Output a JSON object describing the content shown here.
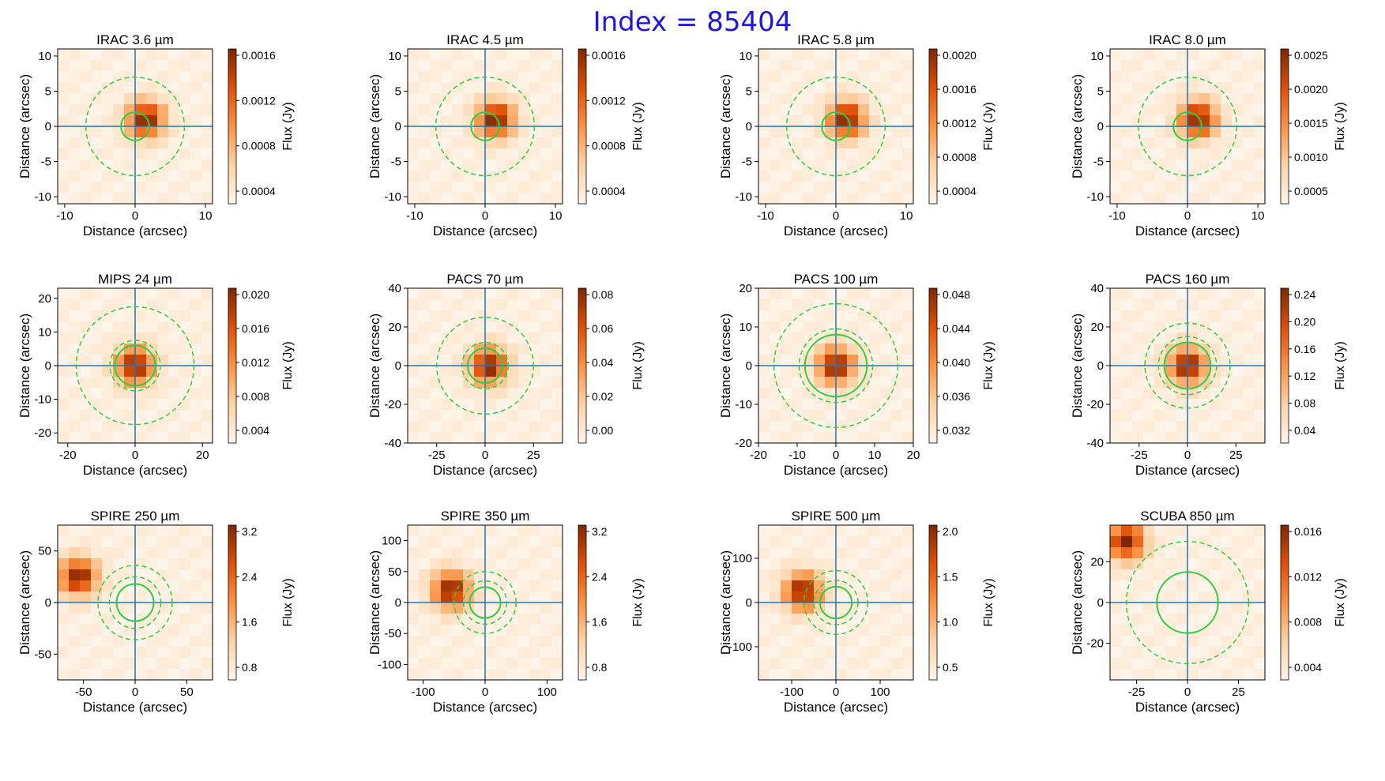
{
  "figure_title": "Index = 85404",
  "colors": {
    "title": "#1d18e0",
    "aperture": "#2ecc40",
    "crosshair": "#1f77b4",
    "cmap": [
      "#fff5eb",
      "#fdd3a7",
      "#fd9243",
      "#df4f05",
      "#7f2704"
    ]
  },
  "chart_data": [
    {
      "type": "heatmap",
      "title": "IRAC 3.6 µm",
      "xlabel": "Distance (arcsec)",
      "ylabel": "Distance (arcsec)",
      "cbar_label": "Flux (Jy)",
      "xlim": [
        -11,
        11
      ],
      "ylim": [
        -11,
        11
      ],
      "xticks": [
        -10,
        0,
        10
      ],
      "yticks": [
        10,
        5,
        0,
        -5,
        -10
      ],
      "cbar_ticks": [
        "0.0016",
        "0.0012",
        "0.0008",
        "0.0004"
      ],
      "aperture_radius": 2,
      "annulus_radii": [
        7
      ],
      "source": {
        "x": 1.5,
        "y": 1.0
      }
    },
    {
      "type": "heatmap",
      "title": "IRAC 4.5 µm",
      "xlabel": "Distance (arcsec)",
      "ylabel": "Distance (arcsec)",
      "cbar_label": "Flux (Jy)",
      "xlim": [
        -11,
        11
      ],
      "ylim": [
        -11,
        11
      ],
      "xticks": [
        -10,
        0,
        10
      ],
      "yticks": [
        10,
        5,
        0,
        -5,
        -10
      ],
      "cbar_ticks": [
        "0.0016",
        "0.0012",
        "0.0008",
        "0.0004"
      ],
      "aperture_radius": 2,
      "annulus_radii": [
        7
      ],
      "source": {
        "x": 1.5,
        "y": 1.0
      }
    },
    {
      "type": "heatmap",
      "title": "IRAC 5.8 µm",
      "xlabel": "Distance (arcsec)",
      "ylabel": "Distance (arcsec)",
      "cbar_label": "Flux (Jy)",
      "xlim": [
        -11,
        11
      ],
      "ylim": [
        -11,
        11
      ],
      "xticks": [
        -10,
        0,
        10
      ],
      "yticks": [
        10,
        5,
        0,
        -5,
        -10
      ],
      "cbar_ticks": [
        "0.0020",
        "0.0016",
        "0.0012",
        "0.0008",
        "0.0004"
      ],
      "aperture_radius": 2,
      "annulus_radii": [
        7
      ],
      "source": {
        "x": 1.5,
        "y": 1.0
      }
    },
    {
      "type": "heatmap",
      "title": "IRAC 8.0 µm",
      "xlabel": "Distance (arcsec)",
      "ylabel": "Distance (arcsec)",
      "cbar_label": "Flux (Jy)",
      "xlim": [
        -11,
        11
      ],
      "ylim": [
        -11,
        11
      ],
      "xticks": [
        -10,
        0,
        10
      ],
      "yticks": [
        10,
        5,
        0,
        -5,
        -10
      ],
      "cbar_ticks": [
        "0.0025",
        "0.0020",
        "0.0015",
        "0.0010",
        "0.0005"
      ],
      "aperture_radius": 2,
      "annulus_radii": [
        7
      ],
      "source": {
        "x": 1.5,
        "y": 1.0
      }
    },
    {
      "type": "heatmap",
      "title": "MIPS 24 µm",
      "xlabel": "Distance (arcsec)",
      "ylabel": "Distance (arcsec)",
      "cbar_label": "Flux (Jy)",
      "xlim": [
        -23,
        23
      ],
      "ylim": [
        -23,
        23
      ],
      "xticks": [
        -20,
        0,
        20
      ],
      "yticks": [
        20,
        10,
        0,
        -10,
        -20
      ],
      "cbar_ticks": [
        "0.020",
        "0.016",
        "0.012",
        "0.008",
        "0.004"
      ],
      "aperture_radius": 6,
      "annulus_radii": [
        7.5,
        17.5
      ],
      "source": {
        "x": 0,
        "y": 0
      }
    },
    {
      "type": "heatmap",
      "title": "PACS 70 µm",
      "xlabel": "Distance (arcsec)",
      "ylabel": "Distance (arcsec)",
      "cbar_label": "Flux (Jy)",
      "xlim": [
        -40,
        40
      ],
      "ylim": [
        -40,
        40
      ],
      "xticks": [
        -25,
        0,
        25
      ],
      "yticks": [
        40,
        20,
        0,
        -20,
        -40
      ],
      "cbar_ticks": [
        "0.08",
        "0.06",
        "0.04",
        "0.02",
        "0.00"
      ],
      "aperture_radius": 9,
      "annulus_radii": [
        12,
        25
      ],
      "source": {
        "x": 2,
        "y": 0
      }
    },
    {
      "type": "heatmap",
      "title": "PACS 100 µm",
      "xlabel": "Distance (arcsec)",
      "ylabel": "Distance (arcsec)",
      "cbar_label": "Flux (Jy)",
      "xlim": [
        -20,
        20
      ],
      "ylim": [
        -20,
        20
      ],
      "xticks": [
        -20,
        -10,
        0,
        10,
        20
      ],
      "yticks": [
        20,
        10,
        0,
        -10,
        -20
      ],
      "cbar_ticks": [
        "0.048",
        "0.044",
        "0.040",
        "0.036",
        "0.032"
      ],
      "aperture_radius": 8,
      "annulus_radii": [
        9.5,
        16
      ],
      "source": {
        "x": 0,
        "y": 0
      }
    },
    {
      "type": "heatmap",
      "title": "PACS 160 µm",
      "xlabel": "Distance (arcsec)",
      "ylabel": "Distance (arcsec)",
      "cbar_label": "Flux (Jy)",
      "xlim": [
        -40,
        40
      ],
      "ylim": [
        -40,
        40
      ],
      "xticks": [
        -25,
        0,
        25
      ],
      "yticks": [
        40,
        20,
        0,
        -20,
        -40
      ],
      "cbar_ticks": [
        "0.24",
        "0.20",
        "0.16",
        "0.12",
        "0.08",
        "0.04"
      ],
      "aperture_radius": 12,
      "annulus_radii": [
        15,
        22
      ],
      "source": {
        "x": 0,
        "y": 0
      }
    },
    {
      "type": "heatmap",
      "title": "SPIRE 250 µm",
      "xlabel": "Distance (arcsec)",
      "ylabel": "Distance (arcsec)",
      "cbar_label": "Flux (Jy)",
      "xlim": [
        -75,
        75
      ],
      "ylim": [
        -75,
        75
      ],
      "xticks": [
        -50,
        0,
        50
      ],
      "yticks": [
        50,
        0,
        -50
      ],
      "cbar_ticks": [
        "3.2",
        "2.4",
        "1.6",
        "0.8"
      ],
      "aperture_radius": 18,
      "annulus_radii": [
        25,
        36
      ],
      "source": {
        "x": -55,
        "y": 25
      }
    },
    {
      "type": "heatmap",
      "title": "SPIRE 350 µm",
      "xlabel": "Distance (arcsec)",
      "ylabel": "Distance (arcsec)",
      "cbar_label": "Flux (Jy)",
      "xlim": [
        -125,
        125
      ],
      "ylim": [
        -125,
        125
      ],
      "xticks": [
        -100,
        0,
        100
      ],
      "yticks": [
        100,
        50,
        0,
        -50,
        -100
      ],
      "cbar_ticks": [
        "3.2",
        "2.4",
        "1.6",
        "0.8"
      ],
      "aperture_radius": 25,
      "annulus_radii": [
        35,
        50
      ],
      "source": {
        "x": -55,
        "y": 20
      }
    },
    {
      "type": "heatmap",
      "title": "SPIRE 500 µm",
      "xlabel": "Distance (arcsec)",
      "ylabel": "Distance (arcsec)",
      "cbar_label": "Flux (Jy)",
      "xlim": [
        -175,
        175
      ],
      "ylim": [
        -175,
        175
      ],
      "xticks": [
        -100,
        0,
        100
      ],
      "yticks": [
        100,
        0,
        -100
      ],
      "cbar_ticks": [
        "2.0",
        "1.5",
        "1.0",
        "0.5"
      ],
      "aperture_radius": 36,
      "annulus_radii": [
        50,
        72
      ],
      "source": {
        "x": -75,
        "y": 25
      }
    },
    {
      "type": "heatmap",
      "title": "SCUBA 850 µm",
      "xlabel": "Distance (arcsec)",
      "ylabel": "Distance (arcsec)",
      "cbar_label": "Flux (Jy)",
      "xlim": [
        -38,
        38
      ],
      "ylim": [
        -38,
        38
      ],
      "xticks": [
        -25,
        0,
        25
      ],
      "yticks": [
        20,
        0,
        -20
      ],
      "cbar_ticks": [
        "0.016",
        "0.012",
        "0.008",
        "0.004"
      ],
      "aperture_radius": 15,
      "annulus_radii": [
        30
      ],
      "source": {
        "x": -30,
        "y": 30
      }
    }
  ]
}
